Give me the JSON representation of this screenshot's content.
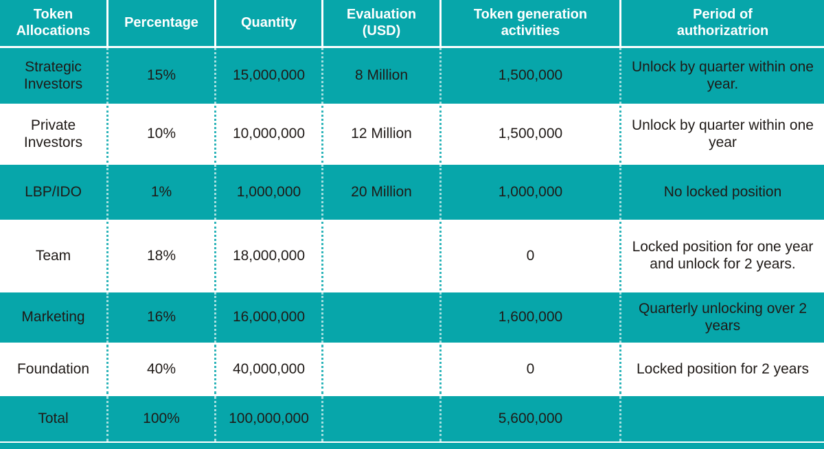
{
  "colors": {
    "teal": "#07a6aa",
    "header_text": "#ffffff",
    "cell_text": "#1f1a17",
    "row_separator": "#ffffff",
    "dotted_divider_on_white": "#2cb4b9"
  },
  "chart_data": {
    "type": "table",
    "title": "Token Allocations",
    "columns": [
      "Token\nAllocations",
      "Percentage",
      "Quantity",
      "Evaluation\n(USD)",
      "Token generation\nactivities",
      "Period of\nauthorizatrion"
    ],
    "rows": [
      {
        "style": "teal",
        "cells": [
          "Strategic Investors",
          "15%",
          "15,000,000",
          "8 Million",
          "1,500,000",
          "Unlock by quarter within one year."
        ]
      },
      {
        "style": "white",
        "cells": [
          "Private Investors",
          "10%",
          "10,000,000",
          "12 Million",
          "1,500,000",
          "Unlock by quarter within one year"
        ]
      },
      {
        "style": "teal",
        "cells": [
          "LBP/IDO",
          "1%",
          "1,000,000",
          "20 Million",
          "1,000,000",
          "No locked position"
        ]
      },
      {
        "style": "white",
        "cells": [
          "Team",
          "18%",
          "18,000,000",
          "",
          "0",
          "Locked position for one year and unlock for 2 years."
        ]
      },
      {
        "style": "teal",
        "cells": [
          "Marketing",
          "16%",
          "16,000,000",
          "",
          "1,600,000",
          "Quarterly unlocking over 2 years"
        ]
      },
      {
        "style": "white",
        "cells": [
          "Foundation",
          "40%",
          "40,000,000",
          "",
          "0",
          "Locked position for 2 years"
        ]
      },
      {
        "style": "teal",
        "cells": [
          "Total",
          "100%",
          "100,000,000",
          "",
          "5,600,000",
          ""
        ]
      }
    ]
  }
}
